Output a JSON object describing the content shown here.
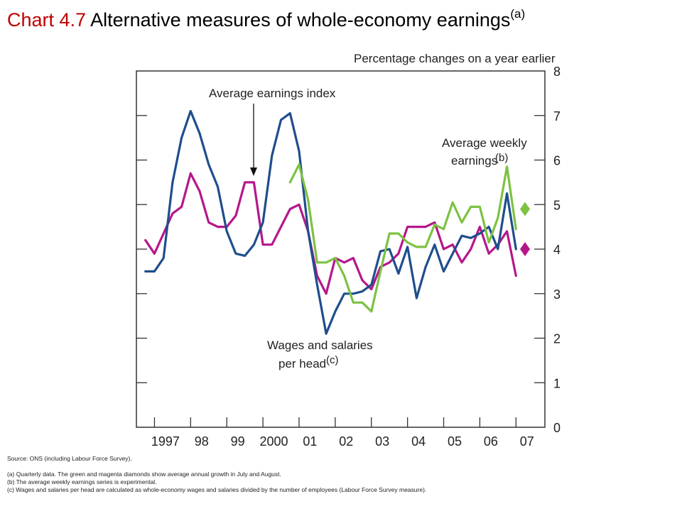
{
  "title": {
    "prefix": "Chart 4.7",
    "text": "Alternative measures of whole-economy earnings",
    "superscript": "(a)"
  },
  "chart_data": {
    "type": "line",
    "units_label": "Percentage changes on a year earlier",
    "ylim": [
      0,
      8
    ],
    "y_ticks": [
      "0",
      "1",
      "2",
      "3",
      "4",
      "5",
      "6",
      "7",
      "8"
    ],
    "x_tick_labels": [
      "1997",
      "98",
      "99",
      "2000",
      "01",
      "02",
      "03",
      "04",
      "05",
      "06",
      "07"
    ],
    "xlim": [
      1996.5,
      2007.8
    ],
    "grid": false,
    "series": [
      {
        "name": "Average earnings index",
        "color": "#b5178b",
        "points": [
          [
            1996.75,
            4.2
          ],
          [
            1997.0,
            3.9
          ],
          [
            1997.25,
            4.35
          ],
          [
            1997.5,
            4.8
          ],
          [
            1997.75,
            4.95
          ],
          [
            1998.0,
            5.7
          ],
          [
            1998.25,
            5.3
          ],
          [
            1998.5,
            4.6
          ],
          [
            1998.75,
            4.5
          ],
          [
            1999.0,
            4.5
          ],
          [
            1999.25,
            4.75
          ],
          [
            1999.5,
            5.5
          ],
          [
            1999.75,
            5.5
          ],
          [
            2000.0,
            4.1
          ],
          [
            2000.25,
            4.1
          ],
          [
            2000.5,
            4.5
          ],
          [
            2000.75,
            4.9
          ],
          [
            2001.0,
            5.0
          ],
          [
            2001.25,
            4.4
          ],
          [
            2001.5,
            3.4
          ],
          [
            2001.75,
            3.0
          ],
          [
            2002.0,
            3.8
          ],
          [
            2002.25,
            3.7
          ],
          [
            2002.5,
            3.8
          ],
          [
            2002.75,
            3.3
          ],
          [
            2003.0,
            3.1
          ],
          [
            2003.25,
            3.6
          ],
          [
            2003.5,
            3.7
          ],
          [
            2003.75,
            3.9
          ],
          [
            2004.0,
            4.5
          ],
          [
            2004.25,
            4.5
          ],
          [
            2004.5,
            4.5
          ],
          [
            2004.75,
            4.6
          ],
          [
            2005.0,
            4.0
          ],
          [
            2005.25,
            4.1
          ],
          [
            2005.5,
            3.7
          ],
          [
            2005.75,
            4.0
          ],
          [
            2006.0,
            4.5
          ],
          [
            2006.25,
            3.9
          ],
          [
            2006.5,
            4.1
          ],
          [
            2006.75,
            4.4
          ],
          [
            2007.0,
            3.4
          ]
        ]
      },
      {
        "name": "Wages and salaries per head",
        "color": "#1f4e8c",
        "points": [
          [
            1996.75,
            3.5
          ],
          [
            1997.0,
            3.5
          ],
          [
            1997.25,
            3.8
          ],
          [
            1997.5,
            5.5
          ],
          [
            1997.75,
            6.5
          ],
          [
            1998.0,
            7.1
          ],
          [
            1998.25,
            6.6
          ],
          [
            1998.5,
            5.9
          ],
          [
            1998.75,
            5.4
          ],
          [
            1999.0,
            4.4
          ],
          [
            1999.25,
            3.9
          ],
          [
            1999.5,
            3.85
          ],
          [
            1999.75,
            4.1
          ],
          [
            2000.0,
            4.6
          ],
          [
            2000.25,
            6.1
          ],
          [
            2000.5,
            6.9
          ],
          [
            2000.75,
            7.05
          ],
          [
            2001.0,
            6.2
          ],
          [
            2001.25,
            4.4
          ],
          [
            2001.5,
            3.2
          ],
          [
            2001.75,
            2.1
          ],
          [
            2002.0,
            2.6
          ],
          [
            2002.25,
            3.0
          ],
          [
            2002.5,
            3.0
          ],
          [
            2002.75,
            3.05
          ],
          [
            2003.0,
            3.2
          ],
          [
            2003.25,
            3.95
          ],
          [
            2003.5,
            4.0
          ],
          [
            2003.75,
            3.45
          ],
          [
            2004.0,
            4.05
          ],
          [
            2004.25,
            2.9
          ],
          [
            2004.5,
            3.6
          ],
          [
            2004.75,
            4.1
          ],
          [
            2005.0,
            3.5
          ],
          [
            2005.25,
            3.9
          ],
          [
            2005.5,
            4.3
          ],
          [
            2005.75,
            4.25
          ],
          [
            2006.0,
            4.35
          ],
          [
            2006.25,
            4.5
          ],
          [
            2006.5,
            4.0
          ],
          [
            2006.75,
            5.25
          ],
          [
            2007.0,
            4.0
          ]
        ]
      },
      {
        "name": "Average weekly earnings",
        "color": "#7dc242",
        "points": [
          [
            2000.75,
            5.5
          ],
          [
            2001.0,
            5.9
          ],
          [
            2001.25,
            5.1
          ],
          [
            2001.5,
            3.7
          ],
          [
            2001.75,
            3.7
          ],
          [
            2002.0,
            3.8
          ],
          [
            2002.25,
            3.4
          ],
          [
            2002.5,
            2.8
          ],
          [
            2002.75,
            2.8
          ],
          [
            2003.0,
            2.6
          ],
          [
            2003.25,
            3.5
          ],
          [
            2003.5,
            4.35
          ],
          [
            2003.75,
            4.35
          ],
          [
            2004.0,
            4.15
          ],
          [
            2004.25,
            4.05
          ],
          [
            2004.5,
            4.05
          ],
          [
            2004.75,
            4.55
          ],
          [
            2005.0,
            4.45
          ],
          [
            2005.25,
            5.05
          ],
          [
            2005.5,
            4.6
          ],
          [
            2005.75,
            4.95
          ],
          [
            2006.0,
            4.95
          ],
          [
            2006.25,
            4.15
          ],
          [
            2006.5,
            4.7
          ],
          [
            2006.75,
            5.85
          ],
          [
            2007.0,
            4.45
          ]
        ]
      }
    ],
    "diamonds": [
      {
        "x": 2007.25,
        "value": 4.9,
        "color": "#7dc242"
      },
      {
        "x": 2007.25,
        "value": 4.0,
        "color": "#b5178b"
      }
    ],
    "annotations": [
      {
        "name": "aei",
        "lines": [
          "Average earnings index"
        ]
      },
      {
        "name": "awe",
        "lines": [
          "Average weekly",
          "earnings"
        ],
        "superscript": "(b)"
      },
      {
        "name": "wsph",
        "lines": [
          "Wages and salaries",
          "per head"
        ],
        "superscript": "(c)"
      }
    ]
  },
  "footnotes": {
    "source": "Source:  ONS (including Labour Force Survey).",
    "notes": [
      "(a)  Quarterly data.  The green and magenta diamonds show average annual growth in July and August.",
      "(b)  The average weekly earnings series is experimental.",
      "(c)  Wages and salaries per head are calculated as whole-economy wages and salaries divided by the number of employees (Labour Force Survey measure)."
    ]
  }
}
